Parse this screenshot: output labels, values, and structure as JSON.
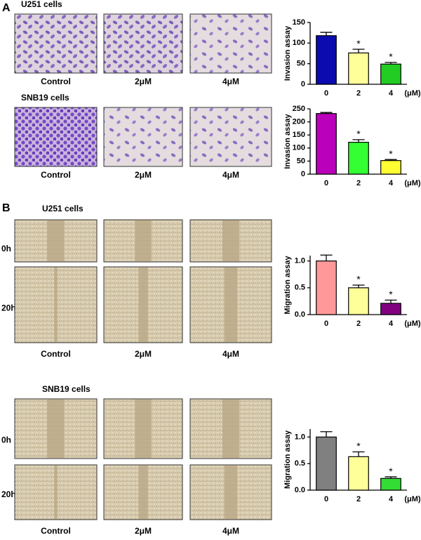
{
  "figure": {
    "panels": [
      {
        "label": "A",
        "blocks": [
          {
            "title": "U251 cells",
            "conditions": [
              "Control",
              "2μM",
              "4μM"
            ]
          },
          {
            "title": "SNB19 cells",
            "conditions": [
              "Control",
              "2μM",
              "4μM"
            ]
          }
        ]
      },
      {
        "label": "B",
        "blocks": [
          {
            "title": "U251 cells",
            "times": [
              "0h",
              "20h"
            ],
            "conditions": [
              "Control",
              "2μM",
              "4μM"
            ]
          },
          {
            "title": "SNB19 cells",
            "times": [
              "0h",
              "20h"
            ],
            "conditions": [
              "Control",
              "2μM",
              "4μM"
            ]
          }
        ]
      }
    ]
  },
  "chart_data": [
    {
      "type": "bar",
      "ylabel": "Invasion assay",
      "xlabel": "(μM)",
      "categories": [
        "0",
        "2",
        "4"
      ],
      "values": [
        118,
        76,
        49
      ],
      "errors": [
        8,
        9,
        4
      ],
      "colors": [
        "#0b0bb0",
        "#ffff99",
        "#22cc22"
      ],
      "bar_labels": [
        null,
        "*",
        "*"
      ],
      "ylim": [
        0,
        150
      ],
      "yticks": [
        0,
        50,
        100,
        150
      ]
    },
    {
      "type": "bar",
      "ylabel": "Invasion assay",
      "xlabel": "(μM)",
      "categories": [
        "0",
        "2",
        "4"
      ],
      "values": [
        232,
        122,
        52
      ],
      "errors": [
        4,
        10,
        4
      ],
      "colors": [
        "#bb00bb",
        "#33ff33",
        "#ffff33"
      ],
      "bar_labels": [
        null,
        "*",
        "*"
      ],
      "ylim": [
        0,
        250
      ],
      "yticks": [
        0,
        50,
        100,
        150,
        200,
        250
      ]
    },
    {
      "type": "bar",
      "ylabel": "Migration assay",
      "xlabel": "(μM)",
      "categories": [
        "0",
        "2",
        "4"
      ],
      "values": [
        1.0,
        0.5,
        0.21
      ],
      "errors": [
        0.11,
        0.05,
        0.06
      ],
      "colors": [
        "#ff9999",
        "#ffff99",
        "#800080"
      ],
      "bar_labels": [
        null,
        "*",
        "*"
      ],
      "ylim": [
        0,
        1.1
      ],
      "yticks": [
        {
          "value": 0,
          "label": "0.0"
        },
        0.5,
        {
          "value": 1,
          "label": "1.0"
        }
      ]
    },
    {
      "type": "bar",
      "ylabel": "Migration assay",
      "xlabel": "(μM)",
      "categories": [
        "0",
        "2",
        "4"
      ],
      "values": [
        1.0,
        0.63,
        0.22
      ],
      "errors": [
        0.1,
        0.09,
        0.03
      ],
      "colors": [
        "#808080",
        "#ffff99",
        "#33dd33"
      ],
      "bar_labels": [
        null,
        "*",
        "*"
      ],
      "ylim": [
        0,
        1.15
      ],
      "yticks": [
        {
          "value": 0,
          "label": "0.0"
        },
        0.5,
        {
          "value": 1,
          "label": "1.0"
        }
      ]
    }
  ]
}
